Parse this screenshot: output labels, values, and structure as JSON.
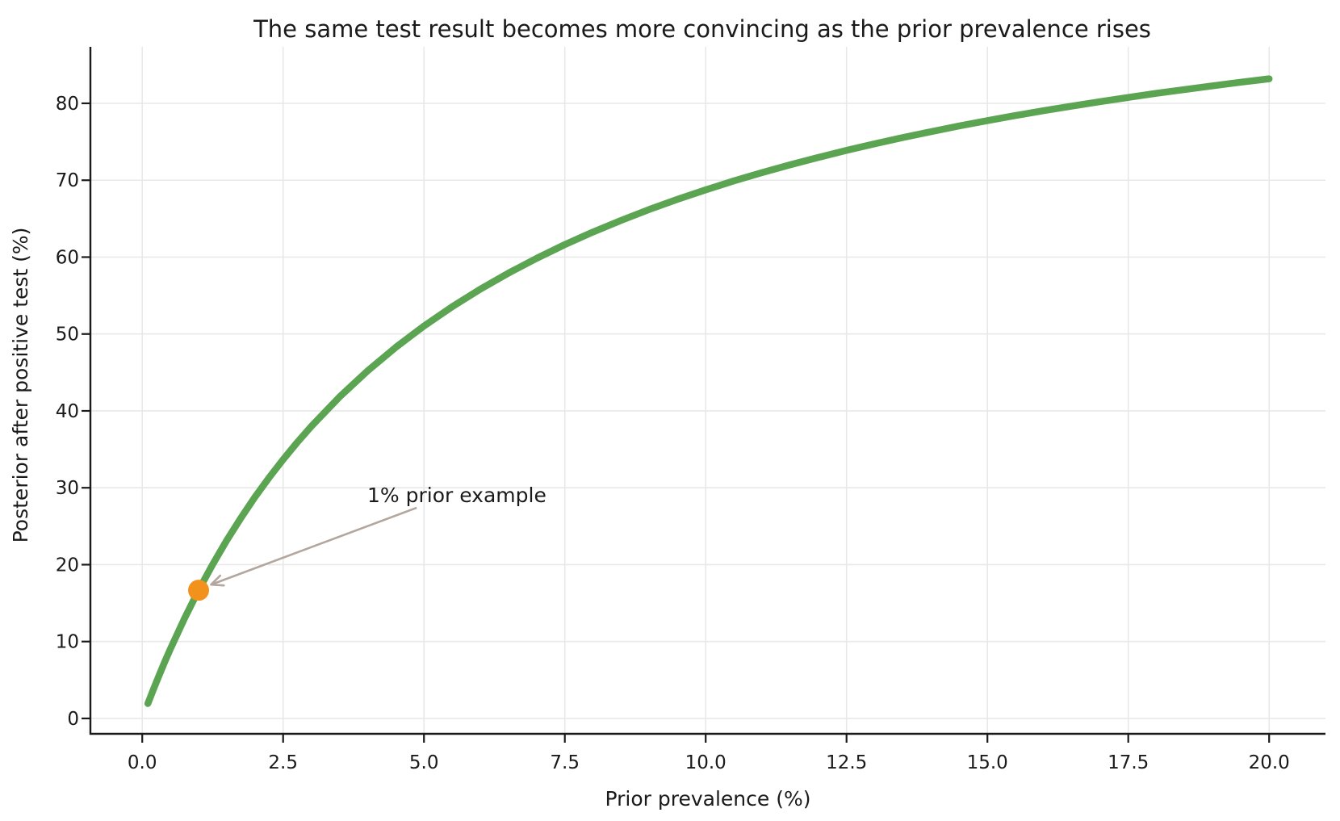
{
  "chart_data": {
    "type": "line",
    "title": "The same test result becomes more convincing as the prior prevalence rises",
    "xlabel": "Prior prevalence (%)",
    "ylabel": "Posterior after positive test (%)",
    "xlim": [
      -0.92,
      21.0
    ],
    "ylim": [
      -2.0,
      87.35
    ],
    "grid": true,
    "legend": "none",
    "x_ticks": [
      0,
      2.5,
      5,
      7.5,
      10,
      12.5,
      15,
      17.5,
      20
    ],
    "x_tick_labels": [
      "0.0",
      "2.5",
      "5.0",
      "7.5",
      "10.0",
      "12.5",
      "15.0",
      "17.5",
      "20.0"
    ],
    "y_ticks": [
      0,
      10,
      20,
      30,
      40,
      50,
      60,
      70,
      80
    ],
    "y_tick_labels": [
      "0",
      "10",
      "20",
      "30",
      "40",
      "50",
      "60",
      "70",
      "80"
    ],
    "series": [
      {
        "name": "posterior-after-positive-test",
        "color": "#5ba552",
        "line_width": 8.5,
        "points": [
          [
            0.1,
            1.94
          ],
          [
            0.2,
            3.82
          ],
          [
            0.3,
            5.62
          ],
          [
            0.4,
            7.37
          ],
          [
            0.5,
            9.05
          ],
          [
            0.75,
            13.01
          ],
          [
            1.0,
            16.67
          ],
          [
            1.25,
            20.04
          ],
          [
            1.5,
            23.17
          ],
          [
            1.75,
            26.07
          ],
          [
            2.0,
            28.78
          ],
          [
            2.25,
            31.31
          ],
          [
            2.5,
            33.67
          ],
          [
            2.75,
            35.9
          ],
          [
            3.0,
            37.98
          ],
          [
            3.5,
            41.8
          ],
          [
            4.0,
            45.21
          ],
          [
            4.5,
            48.27
          ],
          [
            5.0,
            51.03
          ],
          [
            5.5,
            53.54
          ],
          [
            6.0,
            55.83
          ],
          [
            6.5,
            57.92
          ],
          [
            7.0,
            59.84
          ],
          [
            7.5,
            61.63
          ],
          [
            8.0,
            63.26
          ],
          [
            8.5,
            64.78
          ],
          [
            9.0,
            66.2
          ],
          [
            9.5,
            67.52
          ],
          [
            10.0,
            68.75
          ],
          [
            10.5,
            69.91
          ],
          [
            11.0,
            70.99
          ],
          [
            11.5,
            72.01
          ],
          [
            12.0,
            72.97
          ],
          [
            12.5,
            73.88
          ],
          [
            13.0,
            74.74
          ],
          [
            13.5,
            75.55
          ],
          [
            14.0,
            76.32
          ],
          [
            14.5,
            77.06
          ],
          [
            15.0,
            77.75
          ],
          [
            15.5,
            78.41
          ],
          [
            16.0,
            79.04
          ],
          [
            16.5,
            79.64
          ],
          [
            17.0,
            80.22
          ],
          [
            17.5,
            80.77
          ],
          [
            18.0,
            81.3
          ],
          [
            18.5,
            81.8
          ],
          [
            19.0,
            82.28
          ],
          [
            19.5,
            82.75
          ],
          [
            20.0,
            83.19
          ]
        ]
      }
    ],
    "marker_point": {
      "x": 1.0,
      "y": 16.67,
      "color": "#f2921d",
      "radius_px": 13
    },
    "annotation": {
      "text": "1% prior example",
      "text_xy": [
        4.0,
        28.2
      ],
      "arrow_tail_xy": [
        4.87,
        27.4
      ],
      "arrow_head_xy": [
        1.22,
        17.4
      ],
      "arrow_color": "#b2a69e"
    },
    "colors": {
      "curve": "#5ba552",
      "marker": "#f2921d",
      "arrow": "#b2a69e",
      "grid": "#e8e8e8",
      "spine": "#1a1a1a",
      "text": "#1a1a1a",
      "background": "#ffffff"
    }
  }
}
